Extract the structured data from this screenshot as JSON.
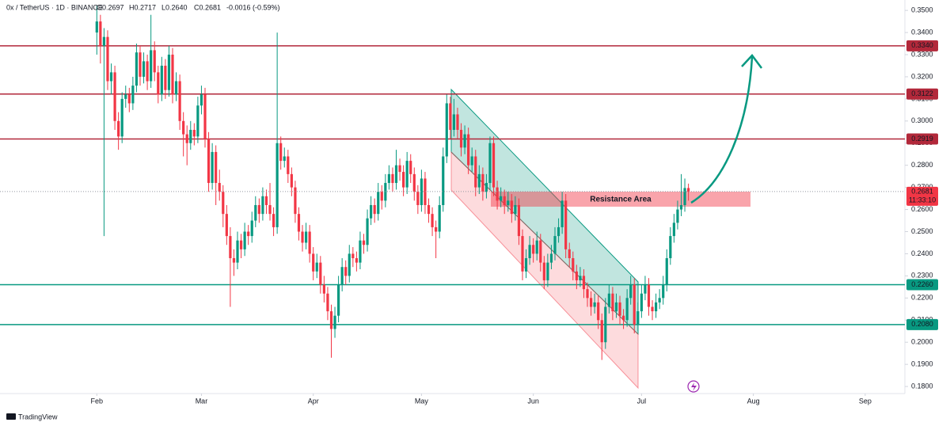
{
  "chart_data": {
    "type": "candlestick",
    "title": "0x / TetherUS · 1D · BINANCE",
    "legend_values": [
      "O0.2697",
      "H0.2717",
      "L0.2640",
      "C0.2681"
    ],
    "change": "-0.0016 (-0.59%)",
    "annotation": "Resistance Area",
    "logo": "TradingView",
    "countdown": "11:33:10",
    "last_price": {
      "value": 0.2681,
      "label": "0.2681"
    },
    "up_color": "#089981",
    "down_color": "#f23645",
    "xlim": [
      -26.84,
      224.0
    ],
    "ylim": [
      0.1768,
      0.3547
    ],
    "xticks": [
      {
        "value": 0,
        "label": "Feb"
      },
      {
        "value": 29,
        "label": "Mar"
      },
      {
        "value": 60,
        "label": "Apr"
      },
      {
        "value": 90,
        "label": "May"
      },
      {
        "value": 121,
        "label": "Jun"
      },
      {
        "value": 151,
        "label": "Jul"
      },
      {
        "value": 182,
        "label": "Aug"
      },
      {
        "value": 213,
        "label": "Sep"
      }
    ],
    "yticks": [
      {
        "value": 0.35,
        "label": "0.3500"
      },
      {
        "value": 0.34,
        "label": "0.3400"
      },
      {
        "value": 0.33,
        "label": "0.3300"
      },
      {
        "value": 0.32,
        "label": "0.3200"
      },
      {
        "value": 0.31,
        "label": "0.3100"
      },
      {
        "value": 0.3,
        "label": "0.3000"
      },
      {
        "value": 0.29,
        "label": "0.2900"
      },
      {
        "value": 0.28,
        "label": "0.2800"
      },
      {
        "value": 0.27,
        "label": "0.2700"
      },
      {
        "value": 0.26,
        "label": "0.2600"
      },
      {
        "value": 0.25,
        "label": "0.2500"
      },
      {
        "value": 0.24,
        "label": "0.2400"
      },
      {
        "value": 0.23,
        "label": "0.2300"
      },
      {
        "value": 0.22,
        "label": "0.2200"
      },
      {
        "value": 0.21,
        "label": "0.2100"
      },
      {
        "value": 0.2,
        "label": "0.2000"
      },
      {
        "value": 0.19,
        "label": "0.1900"
      },
      {
        "value": 0.18,
        "label": "0.1800"
      }
    ],
    "levels": [
      {
        "value": 0.334,
        "label": "0.3340",
        "color": "#b2283a"
      },
      {
        "value": 0.3122,
        "label": "0.3122",
        "color": "#b2283a"
      },
      {
        "value": 0.2919,
        "label": "0.2919",
        "color": "#b2283a"
      },
      {
        "value": 0.226,
        "label": "0.2260",
        "color": "#089981"
      },
      {
        "value": 0.208,
        "label": "0.2080",
        "color": "#089981"
      }
    ],
    "x": [
      0,
      1,
      2,
      3,
      4,
      5,
      6,
      7,
      8,
      9,
      10,
      11,
      12,
      13,
      14,
      15,
      16,
      17,
      18,
      19,
      20,
      21,
      22,
      23,
      24,
      25,
      26,
      27,
      28,
      29,
      30,
      31,
      32,
      33,
      34,
      35,
      36,
      37,
      38,
      39,
      40,
      41,
      42,
      43,
      44,
      45,
      46,
      47,
      48,
      49,
      50,
      51,
      52,
      53,
      54,
      55,
      56,
      57,
      58,
      59,
      60,
      61,
      62,
      63,
      64,
      65,
      66,
      67,
      68,
      69,
      70,
      71,
      72,
      73,
      74,
      75,
      76,
      77,
      78,
      79,
      80,
      81,
      82,
      83,
      84,
      85,
      86,
      87,
      88,
      89,
      90,
      91,
      92,
      93,
      94,
      95,
      96,
      97,
      98,
      99,
      100,
      101,
      102,
      103,
      104,
      105,
      106,
      107,
      108,
      109,
      110,
      111,
      112,
      113,
      114,
      115,
      116,
      117,
      118,
      119,
      120,
      121,
      122,
      123,
      124,
      125,
      126,
      127,
      128,
      129,
      130,
      131,
      132,
      133,
      134,
      135,
      136,
      137,
      138,
      139,
      140,
      141,
      142,
      143,
      144,
      145,
      146,
      147,
      148,
      149,
      150,
      151,
      152,
      153,
      154,
      155,
      156,
      157,
      158,
      159,
      160,
      161,
      162,
      163,
      164
    ],
    "candles": [
      [
        0.34,
        0.352,
        0.33,
        0.345
      ],
      [
        0.345,
        0.348,
        0.326,
        0.334
      ],
      [
        0.334,
        0.342,
        0.248,
        0.338
      ],
      [
        0.338,
        0.341,
        0.314,
        0.318
      ],
      [
        0.318,
        0.326,
        0.312,
        0.322
      ],
      [
        0.322,
        0.325,
        0.296,
        0.3
      ],
      [
        0.3,
        0.304,
        0.287,
        0.293
      ],
      [
        0.293,
        0.313,
        0.29,
        0.31
      ],
      [
        0.31,
        0.316,
        0.306,
        0.312
      ],
      [
        0.312,
        0.315,
        0.304,
        0.308
      ],
      [
        0.308,
        0.32,
        0.305,
        0.316
      ],
      [
        0.316,
        0.335,
        0.313,
        0.331
      ],
      [
        0.331,
        0.334,
        0.316,
        0.32
      ],
      [
        0.32,
        0.331,
        0.317,
        0.327
      ],
      [
        0.327,
        0.33,
        0.314,
        0.318
      ],
      [
        0.318,
        0.348,
        0.315,
        0.332
      ],
      [
        0.332,
        0.336,
        0.318,
        0.322
      ],
      [
        0.322,
        0.325,
        0.308,
        0.312
      ],
      [
        0.312,
        0.329,
        0.309,
        0.325
      ],
      [
        0.325,
        0.328,
        0.31,
        0.314
      ],
      [
        0.314,
        0.334,
        0.311,
        0.33
      ],
      [
        0.33,
        0.333,
        0.308,
        0.312
      ],
      [
        0.312,
        0.322,
        0.309,
        0.318
      ],
      [
        0.318,
        0.321,
        0.296,
        0.3
      ],
      [
        0.3,
        0.304,
        0.284,
        0.294
      ],
      [
        0.294,
        0.298,
        0.28,
        0.29
      ],
      [
        0.29,
        0.3,
        0.287,
        0.296
      ],
      [
        0.296,
        0.299,
        0.289,
        0.293
      ],
      [
        0.293,
        0.311,
        0.29,
        0.307
      ],
      [
        0.307,
        0.316,
        0.303,
        0.312
      ],
      [
        0.312,
        0.315,
        0.288,
        0.292
      ],
      [
        0.292,
        0.295,
        0.268,
        0.272
      ],
      [
        0.272,
        0.29,
        0.269,
        0.286
      ],
      [
        0.286,
        0.289,
        0.262,
        0.272
      ],
      [
        0.272,
        0.278,
        0.264,
        0.268
      ],
      [
        0.268,
        0.271,
        0.252,
        0.258
      ],
      [
        0.258,
        0.262,
        0.244,
        0.248
      ],
      [
        0.248,
        0.252,
        0.216,
        0.238
      ],
      [
        0.238,
        0.242,
        0.23,
        0.236
      ],
      [
        0.236,
        0.25,
        0.233,
        0.246
      ],
      [
        0.246,
        0.249,
        0.238,
        0.242
      ],
      [
        0.242,
        0.254,
        0.239,
        0.25
      ],
      [
        0.25,
        0.253,
        0.244,
        0.248
      ],
      [
        0.248,
        0.259,
        0.245,
        0.255
      ],
      [
        0.255,
        0.266,
        0.252,
        0.262
      ],
      [
        0.262,
        0.265,
        0.254,
        0.258
      ],
      [
        0.258,
        0.27,
        0.255,
        0.266
      ],
      [
        0.266,
        0.269,
        0.258,
        0.262
      ],
      [
        0.262,
        0.272,
        0.255,
        0.258
      ],
      [
        0.258,
        0.261,
        0.248,
        0.252
      ],
      [
        0.252,
        0.34,
        0.249,
        0.29
      ],
      [
        0.29,
        0.293,
        0.278,
        0.282
      ],
      [
        0.282,
        0.288,
        0.279,
        0.284
      ],
      [
        0.284,
        0.287,
        0.272,
        0.276
      ],
      [
        0.276,
        0.279,
        0.266,
        0.27
      ],
      [
        0.27,
        0.273,
        0.254,
        0.258
      ],
      [
        0.258,
        0.261,
        0.246,
        0.25
      ],
      [
        0.25,
        0.253,
        0.241,
        0.245
      ],
      [
        0.245,
        0.254,
        0.242,
        0.25
      ],
      [
        0.25,
        0.253,
        0.236,
        0.24
      ],
      [
        0.24,
        0.243,
        0.228,
        0.232
      ],
      [
        0.232,
        0.24,
        0.229,
        0.236
      ],
      [
        0.236,
        0.239,
        0.222,
        0.226
      ],
      [
        0.226,
        0.23,
        0.218,
        0.222
      ],
      [
        0.222,
        0.225,
        0.21,
        0.214
      ],
      [
        0.214,
        0.217,
        0.193,
        0.206
      ],
      [
        0.206,
        0.216,
        0.202,
        0.212
      ],
      [
        0.212,
        0.23,
        0.209,
        0.226
      ],
      [
        0.226,
        0.238,
        0.223,
        0.234
      ],
      [
        0.234,
        0.237,
        0.226,
        0.23
      ],
      [
        0.23,
        0.244,
        0.227,
        0.24
      ],
      [
        0.24,
        0.243,
        0.234,
        0.238
      ],
      [
        0.238,
        0.241,
        0.232,
        0.236
      ],
      [
        0.236,
        0.25,
        0.233,
        0.246
      ],
      [
        0.246,
        0.249,
        0.24,
        0.244
      ],
      [
        0.244,
        0.26,
        0.241,
        0.256
      ],
      [
        0.256,
        0.266,
        0.253,
        0.262
      ],
      [
        0.262,
        0.265,
        0.254,
        0.258
      ],
      [
        0.258,
        0.272,
        0.255,
        0.268
      ],
      [
        0.268,
        0.271,
        0.26,
        0.264
      ],
      [
        0.264,
        0.276,
        0.261,
        0.272
      ],
      [
        0.272,
        0.28,
        0.269,
        0.276
      ],
      [
        0.276,
        0.279,
        0.268,
        0.272
      ],
      [
        0.272,
        0.287,
        0.269,
        0.28
      ],
      [
        0.28,
        0.283,
        0.273,
        0.277
      ],
      [
        0.277,
        0.28,
        0.266,
        0.27
      ],
      [
        0.27,
        0.286,
        0.267,
        0.282
      ],
      [
        0.282,
        0.285,
        0.272,
        0.276
      ],
      [
        0.276,
        0.279,
        0.264,
        0.268
      ],
      [
        0.268,
        0.271,
        0.258,
        0.262
      ],
      [
        0.262,
        0.278,
        0.259,
        0.274
      ],
      [
        0.274,
        0.277,
        0.258,
        0.262
      ],
      [
        0.262,
        0.265,
        0.254,
        0.258
      ],
      [
        0.258,
        0.261,
        0.248,
        0.252
      ],
      [
        0.252,
        0.255,
        0.238,
        0.25
      ],
      [
        0.25,
        0.266,
        0.247,
        0.262
      ],
      [
        0.262,
        0.288,
        0.259,
        0.284
      ],
      [
        0.284,
        0.312,
        0.281,
        0.308
      ],
      [
        0.308,
        0.311,
        0.292,
        0.296
      ],
      [
        0.296,
        0.31,
        0.293,
        0.303
      ],
      [
        0.303,
        0.306,
        0.292,
        0.296
      ],
      [
        0.296,
        0.299,
        0.284,
        0.288
      ],
      [
        0.288,
        0.298,
        0.285,
        0.294
      ],
      [
        0.294,
        0.297,
        0.276,
        0.28
      ],
      [
        0.28,
        0.288,
        0.277,
        0.284
      ],
      [
        0.284,
        0.287,
        0.266,
        0.27
      ],
      [
        0.27,
        0.28,
        0.267,
        0.276
      ],
      [
        0.276,
        0.279,
        0.264,
        0.268
      ],
      [
        0.268,
        0.276,
        0.265,
        0.272
      ],
      [
        0.272,
        0.293,
        0.269,
        0.29
      ],
      [
        0.29,
        0.293,
        0.266,
        0.27
      ],
      [
        0.27,
        0.273,
        0.26,
        0.264
      ],
      [
        0.264,
        0.27,
        0.261,
        0.266
      ],
      [
        0.266,
        0.269,
        0.258,
        0.262
      ],
      [
        0.262,
        0.268,
        0.259,
        0.264
      ],
      [
        0.264,
        0.267,
        0.254,
        0.258
      ],
      [
        0.258,
        0.266,
        0.255,
        0.262
      ],
      [
        0.262,
        0.265,
        0.244,
        0.248
      ],
      [
        0.248,
        0.251,
        0.228,
        0.232
      ],
      [
        0.232,
        0.242,
        0.229,
        0.238
      ],
      [
        0.238,
        0.248,
        0.235,
        0.244
      ],
      [
        0.244,
        0.247,
        0.236,
        0.24
      ],
      [
        0.24,
        0.25,
        0.237,
        0.246
      ],
      [
        0.246,
        0.249,
        0.232,
        0.236
      ],
      [
        0.236,
        0.239,
        0.224,
        0.228
      ],
      [
        0.228,
        0.24,
        0.225,
        0.236
      ],
      [
        0.236,
        0.244,
        0.233,
        0.24
      ],
      [
        0.24,
        0.252,
        0.237,
        0.248
      ],
      [
        0.248,
        0.256,
        0.245,
        0.252
      ],
      [
        0.252,
        0.268,
        0.249,
        0.264
      ],
      [
        0.264,
        0.267,
        0.238,
        0.242
      ],
      [
        0.242,
        0.245,
        0.234,
        0.238
      ],
      [
        0.238,
        0.241,
        0.228,
        0.232
      ],
      [
        0.232,
        0.235,
        0.224,
        0.228
      ],
      [
        0.228,
        0.234,
        0.225,
        0.23
      ],
      [
        0.23,
        0.233,
        0.22,
        0.224
      ],
      [
        0.224,
        0.227,
        0.216,
        0.22
      ],
      [
        0.22,
        0.223,
        0.212,
        0.216
      ],
      [
        0.216,
        0.222,
        0.213,
        0.218
      ],
      [
        0.218,
        0.221,
        0.206,
        0.21
      ],
      [
        0.21,
        0.213,
        0.192,
        0.2
      ],
      [
        0.2,
        0.22,
        0.197,
        0.216
      ],
      [
        0.216,
        0.226,
        0.213,
        0.222
      ],
      [
        0.222,
        0.225,
        0.21,
        0.214
      ],
      [
        0.214,
        0.222,
        0.211,
        0.218
      ],
      [
        0.218,
        0.221,
        0.208,
        0.212
      ],
      [
        0.212,
        0.215,
        0.206,
        0.21
      ],
      [
        0.21,
        0.224,
        0.207,
        0.22
      ],
      [
        0.22,
        0.23,
        0.217,
        0.226
      ],
      [
        0.226,
        0.229,
        0.204,
        0.208
      ],
      [
        0.208,
        0.218,
        0.205,
        0.214
      ],
      [
        0.214,
        0.226,
        0.211,
        0.222
      ],
      [
        0.222,
        0.23,
        0.219,
        0.226
      ],
      [
        0.226,
        0.229,
        0.212,
        0.216
      ],
      [
        0.216,
        0.219,
        0.21,
        0.214
      ],
      [
        0.214,
        0.222,
        0.211,
        0.218
      ],
      [
        0.218,
        0.224,
        0.215,
        0.22
      ],
      [
        0.22,
        0.23,
        0.217,
        0.226
      ],
      [
        0.226,
        0.242,
        0.223,
        0.238
      ],
      [
        0.238,
        0.252,
        0.235,
        0.248
      ],
      [
        0.248,
        0.258,
        0.245,
        0.254
      ],
      [
        0.254,
        0.264,
        0.251,
        0.26
      ],
      [
        0.26,
        0.276,
        0.257,
        0.262
      ],
      [
        0.262,
        0.274,
        0.259,
        0.2697
      ],
      [
        0.2697,
        0.2717,
        0.264,
        0.2681
      ]
    ]
  }
}
